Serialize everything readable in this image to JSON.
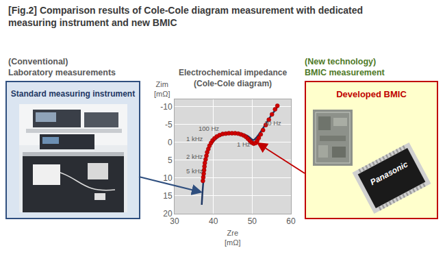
{
  "header": {
    "title": [
      "[Fig.2] Comparison results of Cole-Cole diagram measurement with dedicated",
      "measuring instrument and new BMIC"
    ]
  },
  "left_panel": {
    "heading": [
      "(Conventional)",
      "Laboratory measurements"
    ]
  },
  "right_panel": {
    "heading": [
      "(New technology)",
      "BMIC measurement"
    ],
    "chip_label": "Panasonic"
  },
  "chart_data": {
    "type": "scatter",
    "title": [
      "Electrochemical impedance",
      "(Cole-Cole diagram)"
    ],
    "xlabel": [
      "Zre",
      "[mΩ]"
    ],
    "ylabel": [
      "Zim",
      "[mΩ]"
    ],
    "xlim": [
      30,
      60
    ],
    "xticks": [
      30,
      40,
      50,
      60
    ],
    "ylim": [
      20,
      -12
    ],
    "yticks": [
      -10,
      -5,
      0,
      5,
      10,
      15,
      20
    ],
    "grid": true,
    "series": [
      {
        "name": "Standard measuring instrument",
        "type": "line",
        "color": "#1f3864",
        "line_style": "solid",
        "x": [
          37.0,
          37.2,
          37.5,
          37.8,
          38.2,
          38.8,
          39.6,
          40.5,
          41.8,
          43.5,
          45.5,
          47.5,
          48.8,
          49.7,
          50.3,
          51.0,
          52.0,
          53.2,
          54.5,
          55.8,
          56.8
        ],
        "values": [
          17.5,
          14,
          10,
          7,
          4,
          1.8,
          0.3,
          -0.8,
          -1.8,
          -2.3,
          -2.5,
          -2.3,
          -1.8,
          -1.0,
          -0.6,
          -1.2,
          -2.6,
          -4.6,
          -6.8,
          -8.8,
          -10.3
        ]
      },
      {
        "name": "Developed BMIC",
        "type": "scatter",
        "color": "#d00000",
        "marker": "circle",
        "x": [
          37.3,
          37.4,
          37.5,
          37.6,
          37.7,
          37.8,
          38.0,
          38.2,
          38.4,
          38.7,
          39.0,
          39.4,
          39.8,
          40.3,
          40.9,
          41.6,
          42.4,
          43.2,
          44.0,
          44.8,
          45.6,
          46.4,
          47.1,
          47.8,
          48.4,
          48.9,
          49.4,
          49.9,
          50.4,
          50.9,
          51.3,
          51.7,
          52.2,
          52.8,
          53.5,
          54.3,
          55.1,
          55.9,
          56.5
        ],
        "values": [
          10.8,
          9.8,
          8.8,
          7.8,
          6.8,
          5.8,
          4.8,
          3.8,
          2.8,
          1.9,
          1.0,
          0.2,
          -0.5,
          -1.1,
          -1.6,
          -2.0,
          -2.3,
          -2.4,
          -2.5,
          -2.5,
          -2.5,
          -2.4,
          -2.2,
          -1.9,
          -1.5,
          -1.0,
          -0.4,
          0.1,
          0.4,
          0.2,
          -0.4,
          -1.2,
          -2.2,
          -3.4,
          -4.8,
          -6.3,
          -7.8,
          -9.2,
          -10.2
        ]
      }
    ],
    "annotations": [
      {
        "text": "10 Hz",
        "x": 55.3,
        "y": -5.4
      },
      {
        "text": "100 Hz",
        "x": 38.8,
        "y": -3.8
      },
      {
        "text": "1 kHz",
        "x": 35.2,
        "y": -1.0
      },
      {
        "text": "1 Hz",
        "x": 47.8,
        "y": 0.6
      },
      {
        "text": "2 kHz",
        "x": 35.2,
        "y": 4.0
      },
      {
        "text": "5 kHz",
        "x": 35.2,
        "y": 8.0
      }
    ]
  }
}
